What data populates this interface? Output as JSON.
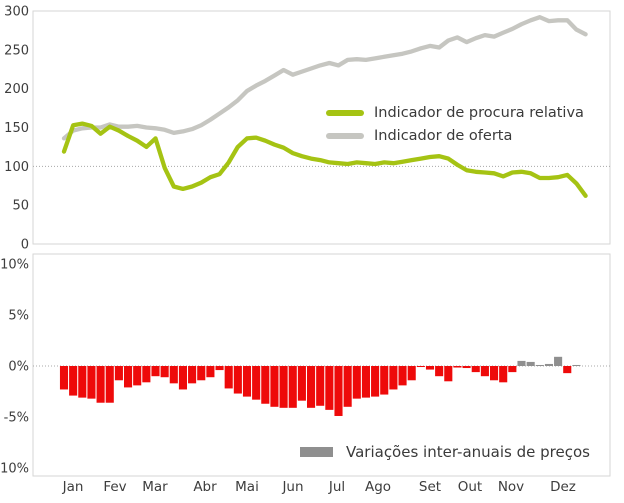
{
  "months": [
    "Jan",
    "Fev",
    "Mar",
    "Abr",
    "Mai",
    "Jun",
    "Jul",
    "Ago",
    "Set",
    "Out",
    "Nov",
    "Dez"
  ],
  "colors": {
    "green_line": "#a5c313",
    "gray_line": "#c6c6c1",
    "red_bar": "#ee0a0a",
    "gray_bar": "#8f8f8f",
    "text": "#3d3d3d",
    "border": "#d6d6d4",
    "dotted_grid": "#a8a8a8"
  },
  "chart_data": [
    {
      "type": "line",
      "panel": "top",
      "x_axis": "weeks of one year (Jan-Dez)",
      "ylim": [
        0,
        300
      ],
      "yticks": [
        0,
        50,
        100,
        150,
        200,
        250,
        300
      ],
      "dotted_gridline_at": 100,
      "legend_position": "middle-right",
      "series": [
        {
          "name": "Indicador de procura relativa",
          "color": "#a5c313",
          "values": [
            119,
            153,
            155,
            152,
            142,
            151,
            146,
            139,
            133,
            125,
            136,
            98,
            74,
            71,
            74,
            79,
            86,
            90,
            105,
            125,
            136,
            137,
            133,
            128,
            124,
            117,
            113,
            110,
            108,
            105,
            104,
            103,
            105,
            104,
            103,
            105,
            104,
            106,
            108,
            110,
            112,
            113,
            110,
            102,
            95,
            93,
            92,
            91,
            87,
            92,
            93,
            91,
            85,
            85,
            86,
            89,
            78,
            62
          ]
        },
        {
          "name": "Indicador de oferta",
          "color": "#c6c6c1",
          "values": [
            136,
            146,
            149,
            150,
            150,
            154,
            151,
            151,
            152,
            150,
            149,
            147,
            143,
            145,
            148,
            153,
            160,
            168,
            176,
            185,
            197,
            204,
            210,
            217,
            224,
            218,
            222,
            226,
            230,
            233,
            230,
            237,
            238,
            237,
            239,
            241,
            243,
            245,
            248,
            252,
            255,
            253,
            262,
            266,
            260,
            265,
            269,
            267,
            272,
            277,
            283,
            288,
            292,
            287,
            288,
            288,
            276,
            270
          ]
        }
      ]
    },
    {
      "type": "bar",
      "panel": "bottom",
      "name": "Variações inter-anuais de preços",
      "x_axis": "weeks of one year (Jan-Dez)",
      "ylim": [
        -10,
        10
      ],
      "yticks": [
        10,
        5,
        0,
        -5,
        -10
      ],
      "ytick_labels": [
        "10%",
        "5%",
        "0%",
        "-5%",
        "-10%"
      ],
      "dotted_gridline_at": 0,
      "positive_color": "#8f8f8f",
      "negative_color": "#ee0a0a",
      "legend_position": "bottom-right",
      "values": [
        -2.3,
        -2.9,
        -3.1,
        -3.2,
        -3.6,
        -3.6,
        -1.4,
        -2.1,
        -1.9,
        -1.6,
        -1.0,
        -1.1,
        -1.7,
        -2.3,
        -1.7,
        -1.4,
        -1.1,
        -0.4,
        -2.2,
        -2.7,
        -3.0,
        -3.3,
        -3.7,
        -4.0,
        -4.1,
        -4.1,
        -3.4,
        -4.1,
        -3.9,
        -4.3,
        -4.9,
        -4.0,
        -3.2,
        -3.1,
        -3.0,
        -2.8,
        -2.3,
        -1.9,
        -1.4,
        -0.1,
        -0.35,
        -1.0,
        -1.5,
        -0.15,
        -0.2,
        -0.6,
        -1.0,
        -1.4,
        -1.6,
        -0.6,
        0.5,
        0.4,
        0.1,
        0.2,
        0.9,
        -0.7,
        0.1,
        0.0
      ]
    }
  ]
}
